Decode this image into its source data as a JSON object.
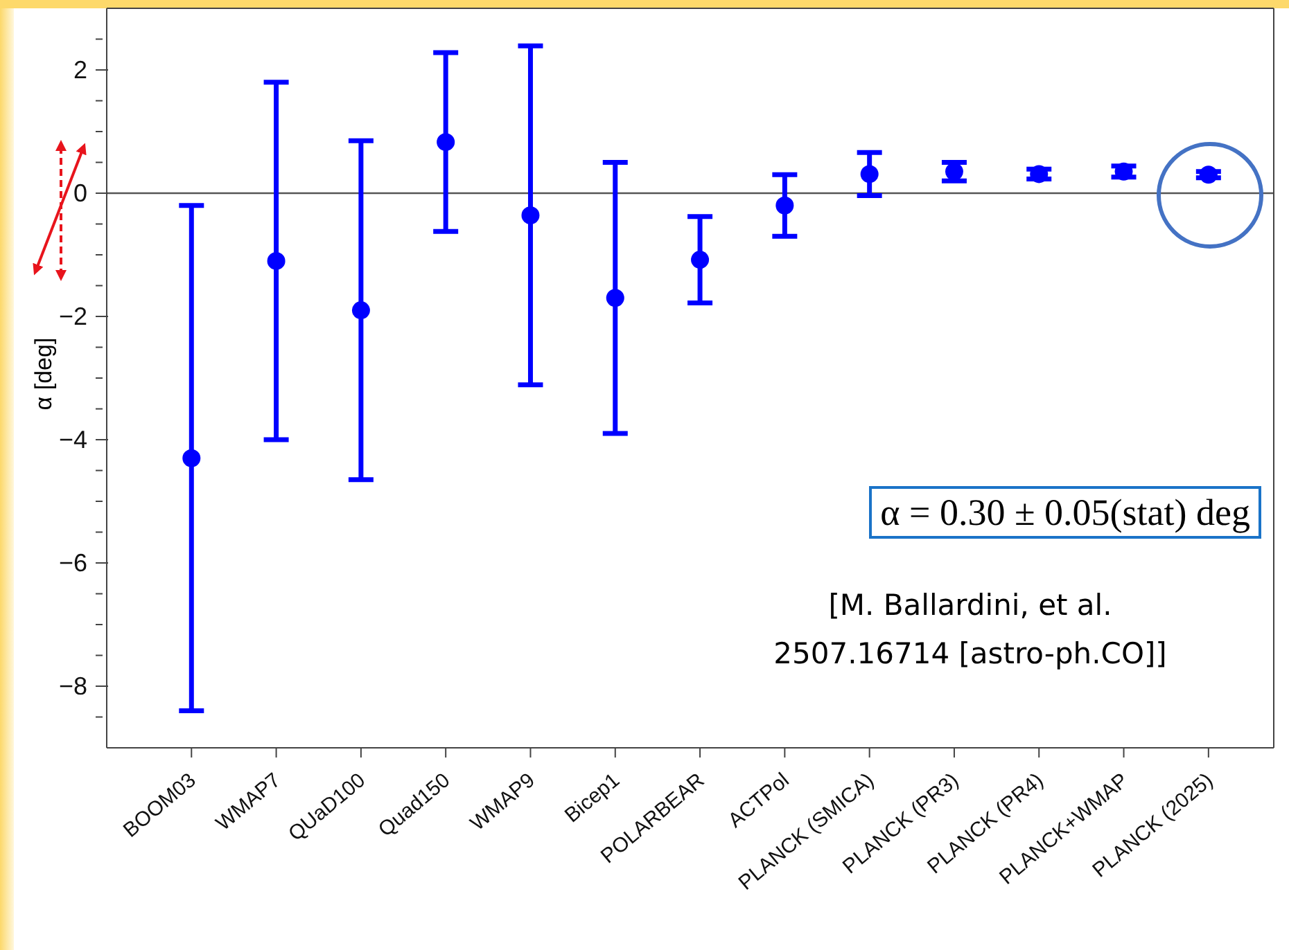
{
  "chart_data": {
    "type": "scatter",
    "ylabel": "α [deg]",
    "categories": [
      "BOOM03",
      "WMAP7",
      "QUaD100",
      "Quad150",
      "WMAP9",
      "Bicep1",
      "POLARBEAR",
      "ACTPol",
      "PLANCK (SMICA)",
      "PLANCK (PR3)",
      "PLANCK (PR4)",
      "PLANCK+WMAP",
      "PLANCK (2025)"
    ],
    "values": [
      -4.3,
      -1.1,
      -1.9,
      0.83,
      -0.36,
      -1.7,
      -1.08,
      -0.2,
      0.31,
      0.35,
      0.31,
      0.35,
      0.3
    ],
    "errors": [
      4.1,
      2.9,
      2.75,
      1.45,
      2.75,
      2.2,
      0.7,
      0.5,
      0.35,
      0.15,
      0.08,
      0.09,
      0.05
    ],
    "color": "#0000ff",
    "marker": "circle",
    "ylim": [
      -9,
      3
    ],
    "yticks": [
      {
        "value": -8.5,
        "label": null
      },
      -8,
      {
        "value": -7.5,
        "label": null
      },
      {
        "value": -7,
        "label": null
      },
      {
        "value": -6.5,
        "label": null
      },
      -6,
      {
        "value": -5.5,
        "label": null
      },
      {
        "value": -5,
        "label": null
      },
      {
        "value": -4.5,
        "label": null
      },
      -4,
      {
        "value": -3.5,
        "label": null
      },
      {
        "value": -3,
        "label": null
      },
      {
        "value": -2.5,
        "label": null
      },
      -2,
      {
        "value": -1.5,
        "label": null
      },
      {
        "value": -1,
        "label": null
      },
      {
        "value": -0.5,
        "label": null
      },
      0,
      {
        "value": 0.5,
        "label": null
      },
      {
        "value": 1,
        "label": null
      },
      {
        "value": 1.5,
        "label": null
      },
      2,
      {
        "value": 2.5,
        "label": null
      }
    ],
    "ref_lines": [
      {
        "axis": "y",
        "value": 0,
        "color": "#555555"
      }
    ],
    "grid": false,
    "legend": false,
    "annotations": [
      "α = 0.30 ± 0.05(stat) deg",
      "[M. Ballardini, et al. 2507.16714 [astro-ph.CO]]"
    ]
  }
}
